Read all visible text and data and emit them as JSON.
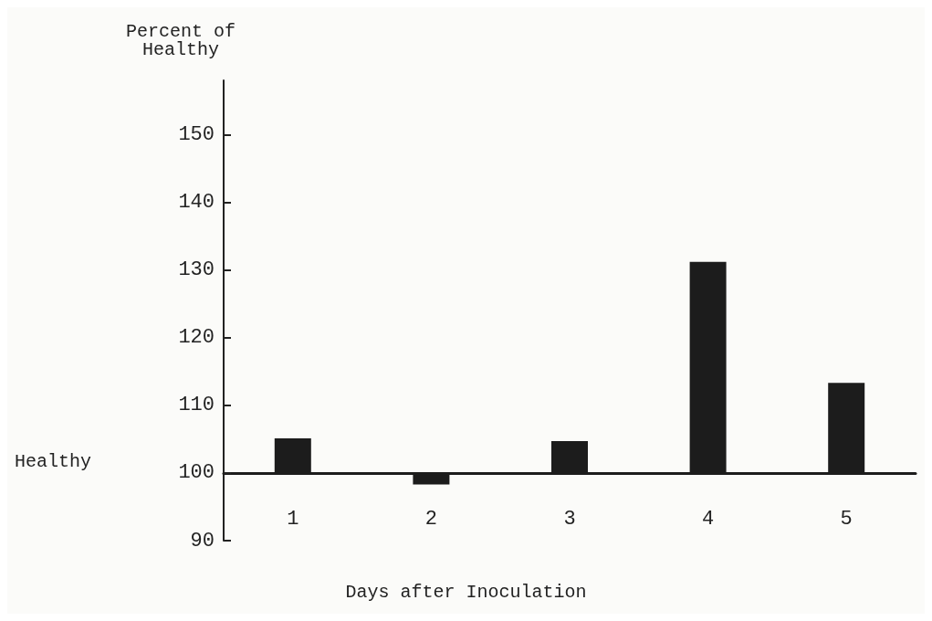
{
  "chart_data": {
    "type": "bar",
    "ylabel": "Percent of\nHealthy",
    "xlabel": "Days after Inoculation",
    "categories": [
      "1",
      "2",
      "3",
      "4",
      "5"
    ],
    "base": [
      100,
      100,
      100,
      100,
      100
    ],
    "values": [
      5.1,
      -1.7,
      4.7,
      31.2,
      13.3
    ],
    "color": "#1c1c1c",
    "ylim": [
      90,
      158
    ],
    "yticks": [
      90,
      100,
      110,
      120,
      130,
      140,
      150
    ],
    "annotations": [
      "Healthy"
    ],
    "grid": false
  }
}
